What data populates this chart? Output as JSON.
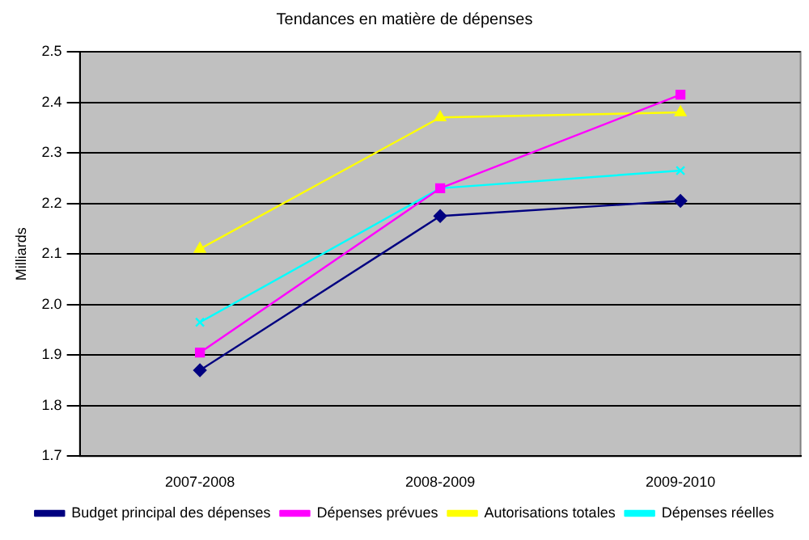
{
  "chart_data": {
    "type": "line",
    "title": "Tendances en matière de dépenses",
    "ylabel": "Milliards",
    "categories": [
      "2007-2008",
      "2008-2009",
      "2009-2010"
    ],
    "series": [
      {
        "name": "Budget principal des dépenses",
        "color": "#000080",
        "values": [
          1.87,
          2.175,
          2.205
        ],
        "marker": "diamond"
      },
      {
        "name": "Dépenses prévues",
        "color": "#ff00ff",
        "values": [
          1.905,
          2.23,
          2.415
        ],
        "marker": "square"
      },
      {
        "name": "Autorisations totales",
        "color": "#ffff00",
        "values": [
          2.11,
          2.37,
          2.38
        ],
        "marker": "triangle"
      },
      {
        "name": "Dépenses réelles",
        "color": "#00ffff",
        "values": [
          1.965,
          2.23,
          2.265
        ],
        "marker": "cross"
      }
    ],
    "ylim": [
      1.7,
      2.5
    ],
    "yticks": [
      1.7,
      1.8,
      1.9,
      {
        "value": 2,
        "label": "2.0"
      },
      2.1,
      2.2,
      2.3,
      2.4,
      2.5
    ],
    "grid": "y",
    "legend": "bottom",
    "line_style": "solid"
  }
}
